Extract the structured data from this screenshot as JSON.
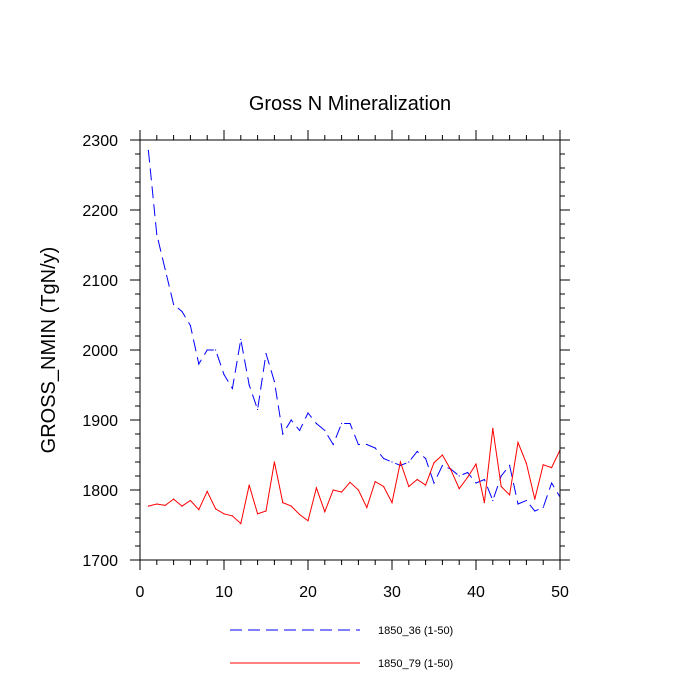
{
  "chart_data": {
    "type": "line",
    "title": "Gross N Mineralization",
    "xlabel": "",
    "ylabel": "GROSS_NMIN  (TgN/y)",
    "xlim": [
      0,
      50
    ],
    "ylim": [
      1700,
      2300
    ],
    "xticks": [
      0,
      10,
      20,
      30,
      40,
      50
    ],
    "yticks": [
      1700,
      1800,
      1900,
      2000,
      2100,
      2200,
      2300
    ],
    "x": [
      1,
      2,
      3,
      4,
      5,
      6,
      7,
      8,
      9,
      10,
      11,
      12,
      13,
      14,
      15,
      16,
      17,
      18,
      19,
      20,
      21,
      22,
      23,
      24,
      25,
      26,
      27,
      28,
      29,
      30,
      31,
      32,
      33,
      34,
      35,
      36,
      37,
      38,
      39,
      40,
      41,
      42,
      43,
      44,
      45,
      46,
      47,
      48,
      49,
      50
    ],
    "series": [
      {
        "name": "1850_36 (1-50)",
        "color": "#0000ff",
        "dash": "dashed",
        "values": [
          2285,
          2165,
          2115,
          2065,
          2055,
          2035,
          1980,
          2000,
          2000,
          1965,
          1945,
          2015,
          1950,
          1915,
          1995,
          1955,
          1880,
          1900,
          1885,
          1910,
          1895,
          1885,
          1865,
          1895,
          1895,
          1865,
          1865,
          1860,
          1845,
          1840,
          1835,
          1840,
          1855,
          1845,
          1810,
          1835,
          1830,
          1820,
          1825,
          1810,
          1815,
          1785,
          1820,
          1835,
          1780,
          1785,
          1770,
          1775,
          1810,
          1790
        ]
      },
      {
        "name": "1850_79 (1-50)",
        "color": "#ff0000",
        "dash": "solid",
        "values": [
          1777,
          1780,
          1778,
          1787,
          1777,
          1785,
          1772,
          1798,
          1773,
          1766,
          1763,
          1752,
          1807,
          1766,
          1770,
          1840,
          1782,
          1777,
          1765,
          1756,
          1803,
          1769,
          1800,
          1797,
          1811,
          1800,
          1775,
          1812,
          1805,
          1782,
          1840,
          1805,
          1815,
          1807,
          1839,
          1850,
          1829,
          1802,
          1818,
          1837,
          1782,
          1888,
          1805,
          1793,
          1868,
          1838,
          1787,
          1836,
          1832,
          1857
        ]
      }
    ],
    "legend": [
      {
        "label": "1850_36 (1-50)"
      },
      {
        "label": "1850_79 (1-50)"
      }
    ]
  }
}
